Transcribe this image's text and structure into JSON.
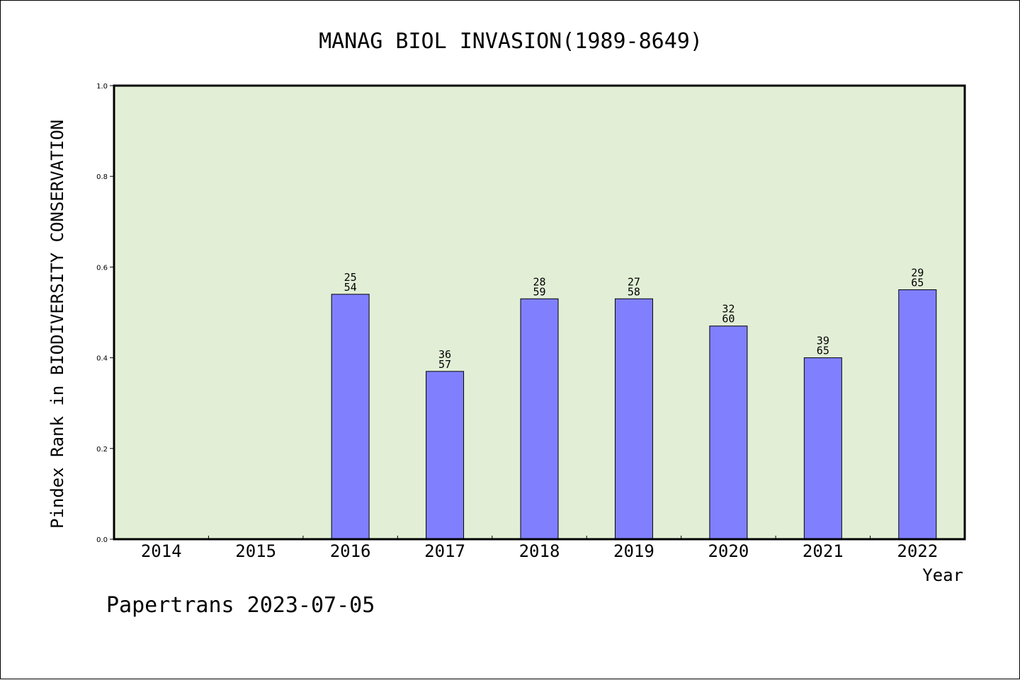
{
  "chart_data": {
    "type": "bar",
    "title": "MANAG BIOL INVASION(1989-8649)",
    "xlabel": "Year",
    "ylabel": "Pindex Rank in BIODIVERSITY CONSERVATION",
    "ylim": [
      0,
      1.0
    ],
    "yticks": [
      "0.0",
      "0.2",
      "0.4",
      "0.6",
      "0.8",
      "1.0"
    ],
    "categories": [
      "2014",
      "2015",
      "2016",
      "2017",
      "2018",
      "2019",
      "2020",
      "2021",
      "2022"
    ],
    "values": [
      null,
      null,
      0.54,
      0.37,
      0.53,
      0.53,
      0.47,
      0.4,
      0.55
    ],
    "data_labels": [
      null,
      null,
      {
        "rank": "25",
        "total": "54"
      },
      {
        "rank": "36",
        "total": "57"
      },
      {
        "rank": "28",
        "total": "59"
      },
      {
        "rank": "27",
        "total": "58"
      },
      {
        "rank": "32",
        "total": "60"
      },
      {
        "rank": "39",
        "total": "65"
      },
      {
        "rank": "29",
        "total": "65"
      }
    ],
    "grid": false,
    "colors": {
      "bar": "#8080ff",
      "plot_background": "#e2efd6",
      "axis": "#000000"
    }
  },
  "footer": {
    "text": "Papertrans 2023-07-05"
  }
}
